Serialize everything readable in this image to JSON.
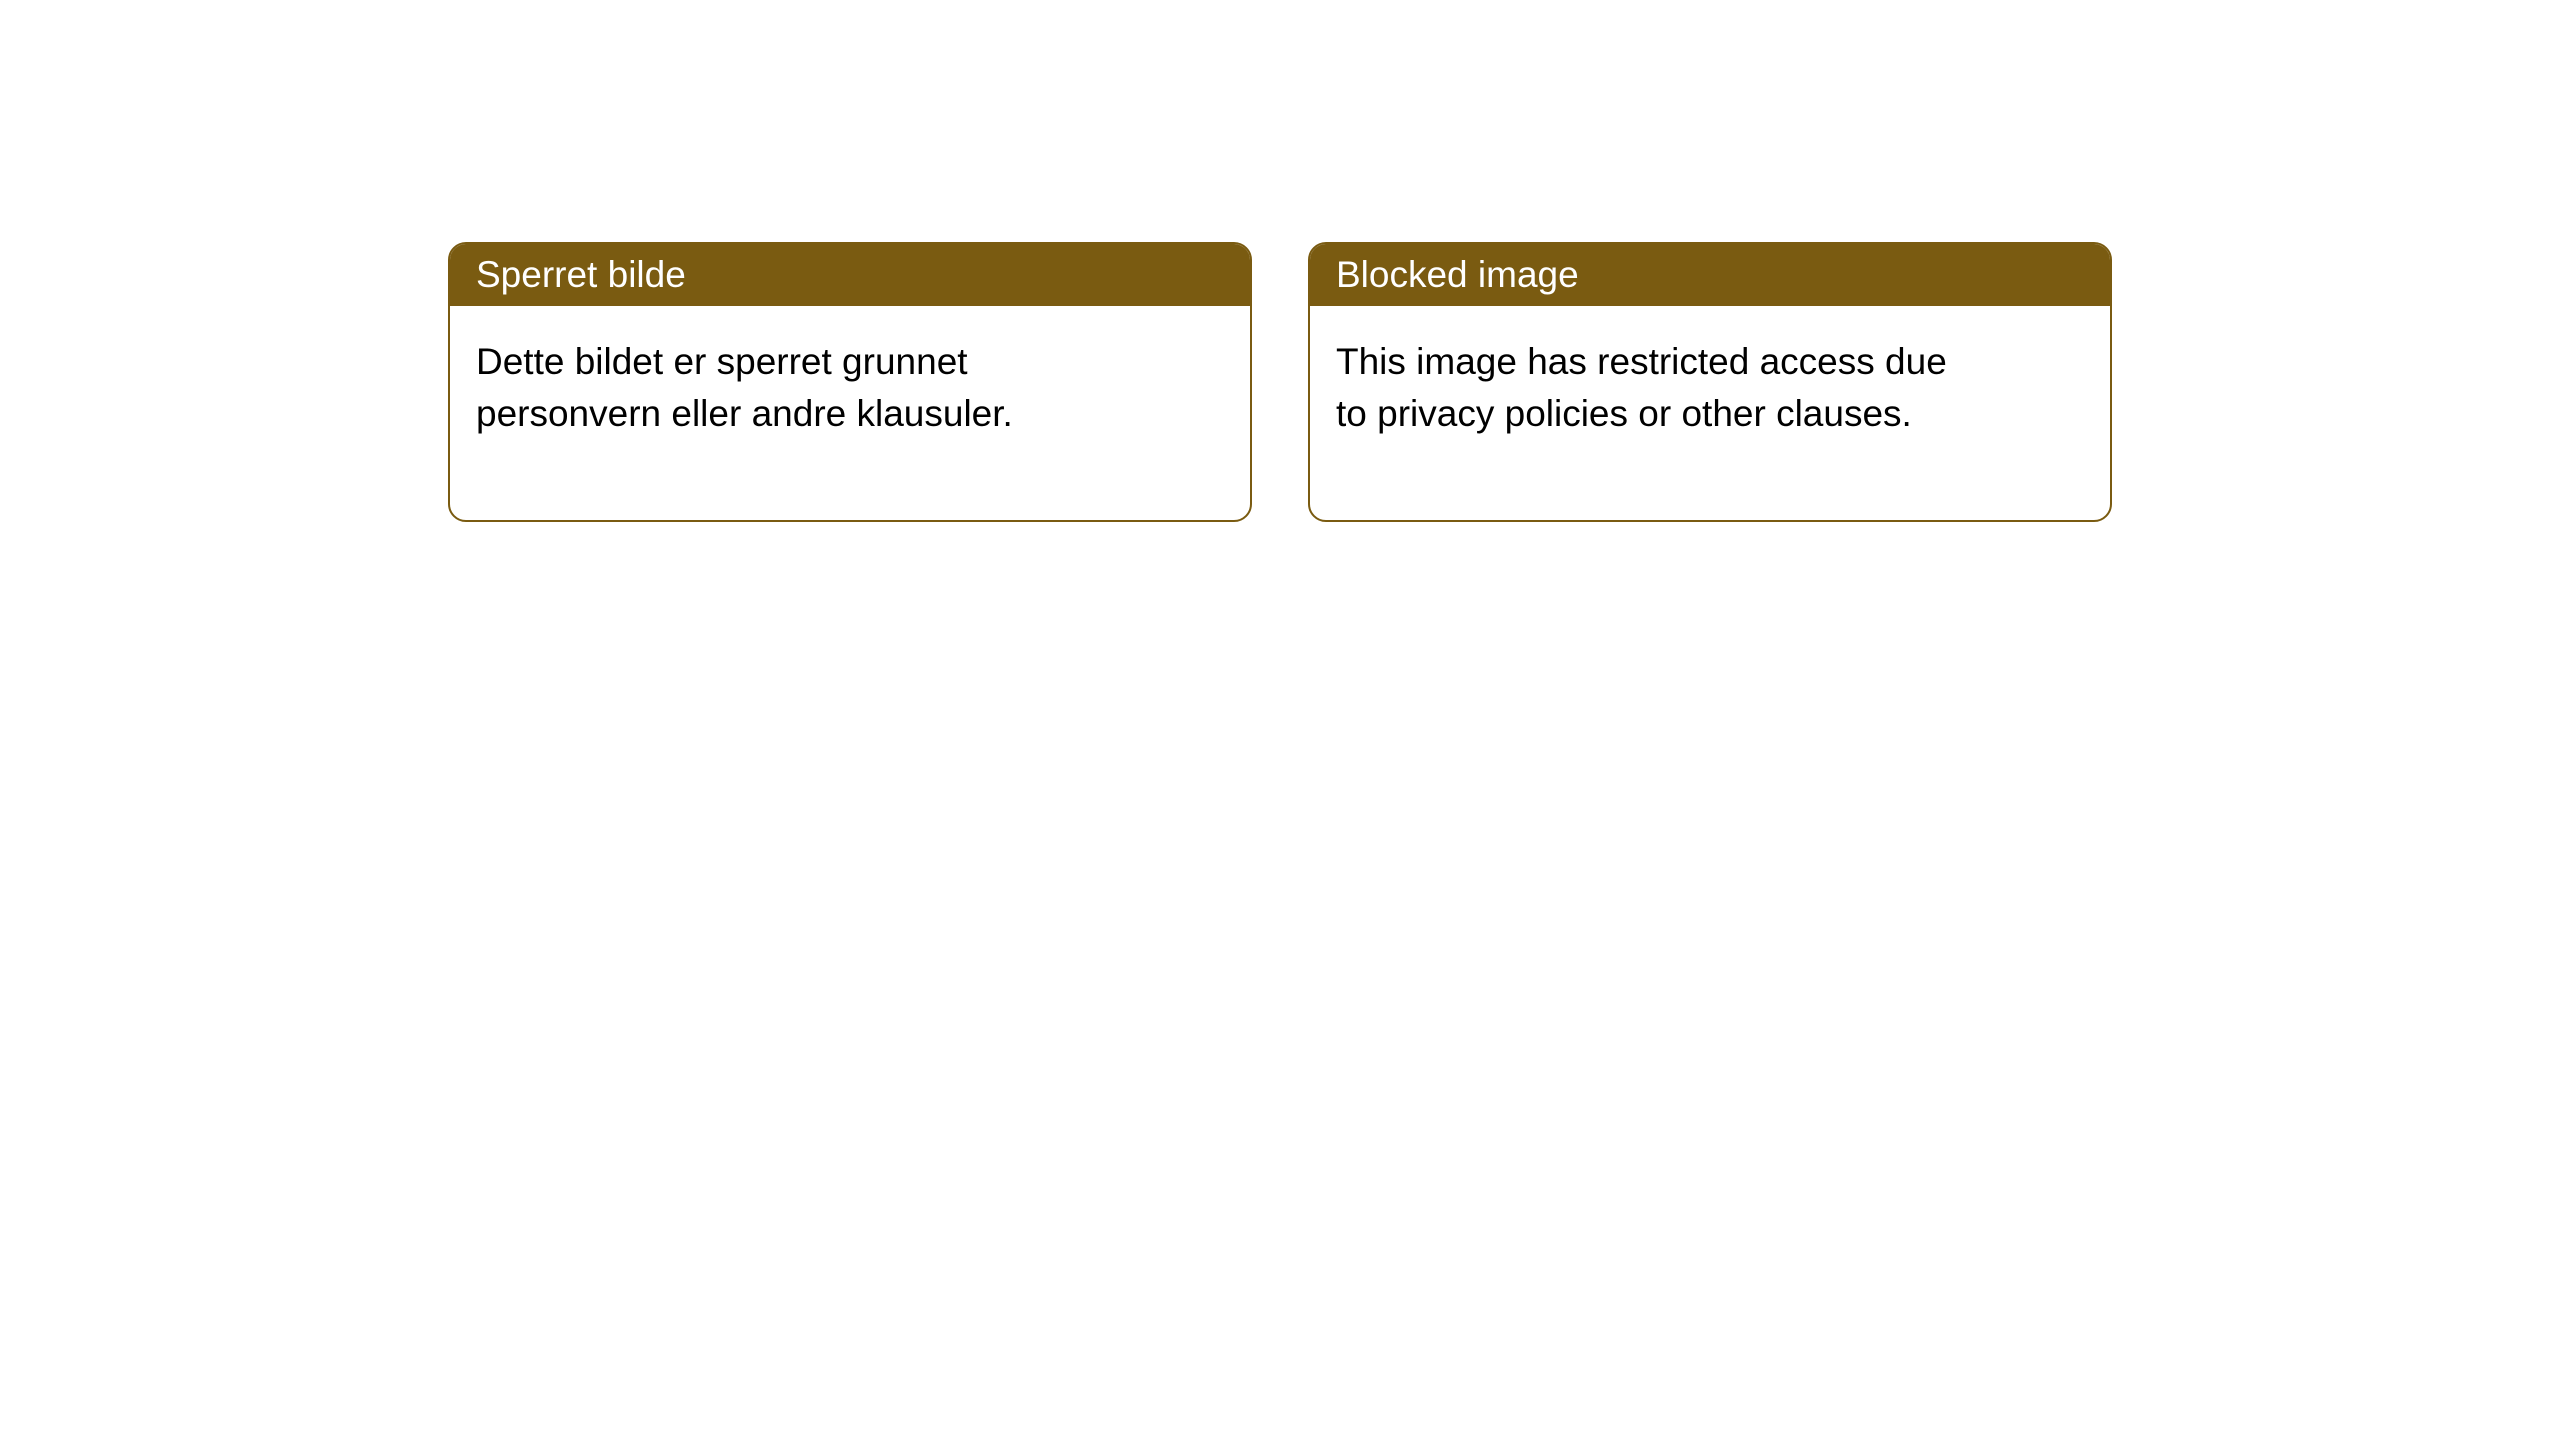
{
  "layout": {
    "background_color": "#ffffff",
    "card_border_color": "#7a5b11",
    "header_bg_color": "#7a5b11",
    "header_text_color": "#ffffff",
    "body_text_color": "#000000",
    "card_border_radius": 18,
    "header_fontsize": 37,
    "body_fontsize": 37
  },
  "cards": {
    "left": {
      "title": "Sperret bilde",
      "body": "Dette bildet er sperret grunnet personvern eller andre klausuler."
    },
    "right": {
      "title": "Blocked image",
      "body": "This image has restricted access due to privacy policies or other clauses."
    }
  }
}
